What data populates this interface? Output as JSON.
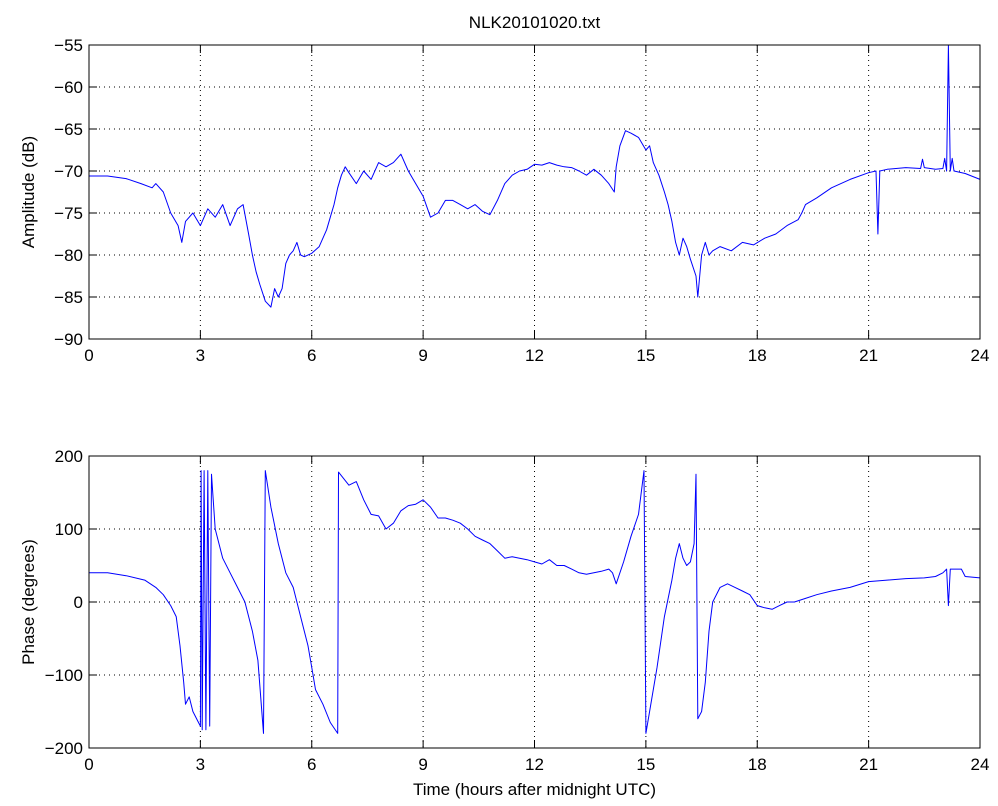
{
  "chart_data": [
    {
      "type": "line",
      "title": "NLK20101020.txt",
      "xlabel": "",
      "ylabel": "Amplitude (dB)",
      "xlim": [
        0,
        24
      ],
      "ylim": [
        -90,
        -55
      ],
      "xticks": [
        0,
        3,
        6,
        9,
        12,
        15,
        18,
        21,
        24
      ],
      "yticks": [
        -90,
        -85,
        -80,
        -75,
        -70,
        -65,
        -60,
        -55
      ],
      "grid": true,
      "line_color": "#0000ff",
      "series": [
        {
          "points": [
            [
              0,
              -70.6
            ],
            [
              0.5,
              -70.6
            ],
            [
              1.0,
              -70.9
            ],
            [
              1.4,
              -71.5
            ],
            [
              1.7,
              -72.0
            ],
            [
              1.8,
              -71.5
            ],
            [
              2.0,
              -72.5
            ],
            [
              2.2,
              -75.0
            ],
            [
              2.4,
              -76.5
            ],
            [
              2.5,
              -78.5
            ],
            [
              2.6,
              -76.0
            ],
            [
              2.8,
              -75.0
            ],
            [
              3.0,
              -76.5
            ],
            [
              3.2,
              -74.5
            ],
            [
              3.4,
              -75.5
            ],
            [
              3.6,
              -74.0
            ],
            [
              3.8,
              -76.5
            ],
            [
              4.0,
              -74.5
            ],
            [
              4.15,
              -74.0
            ],
            [
              4.3,
              -77.5
            ],
            [
              4.4,
              -80.0
            ],
            [
              4.5,
              -82.0
            ],
            [
              4.6,
              -83.5
            ],
            [
              4.75,
              -85.5
            ],
            [
              4.9,
              -86.2
            ],
            [
              5.0,
              -84.0
            ],
            [
              5.1,
              -85.0
            ],
            [
              5.2,
              -84.0
            ],
            [
              5.3,
              -81.0
            ],
            [
              5.4,
              -80.0
            ],
            [
              5.5,
              -79.5
            ],
            [
              5.6,
              -78.5
            ],
            [
              5.7,
              -80.0
            ],
            [
              5.8,
              -80.2
            ],
            [
              6.0,
              -79.8
            ],
            [
              6.2,
              -79.0
            ],
            [
              6.4,
              -77.0
            ],
            [
              6.5,
              -75.5
            ],
            [
              6.6,
              -74.0
            ],
            [
              6.7,
              -72.0
            ],
            [
              6.8,
              -70.5
            ],
            [
              6.9,
              -69.5
            ],
            [
              7.0,
              -70.2
            ],
            [
              7.2,
              -71.5
            ],
            [
              7.4,
              -70.0
            ],
            [
              7.6,
              -71.0
            ],
            [
              7.8,
              -69.0
            ],
            [
              8.0,
              -69.5
            ],
            [
              8.2,
              -69.0
            ],
            [
              8.4,
              -68.0
            ],
            [
              8.6,
              -70.0
            ],
            [
              8.8,
              -71.5
            ],
            [
              9.0,
              -73.0
            ],
            [
              9.2,
              -75.5
            ],
            [
              9.4,
              -75.0
            ],
            [
              9.6,
              -73.5
            ],
            [
              9.8,
              -73.5
            ],
            [
              10.0,
              -74.0
            ],
            [
              10.2,
              -74.5
            ],
            [
              10.4,
              -74.0
            ],
            [
              10.6,
              -74.8
            ],
            [
              10.8,
              -75.2
            ],
            [
              11.0,
              -73.5
            ],
            [
              11.2,
              -71.5
            ],
            [
              11.4,
              -70.5
            ],
            [
              11.6,
              -70.0
            ],
            [
              11.8,
              -69.8
            ],
            [
              12.0,
              -69.2
            ],
            [
              12.2,
              -69.3
            ],
            [
              12.4,
              -69.0
            ],
            [
              12.6,
              -69.3
            ],
            [
              12.8,
              -69.5
            ],
            [
              13.0,
              -69.6
            ],
            [
              13.2,
              -70.0
            ],
            [
              13.4,
              -70.5
            ],
            [
              13.6,
              -69.8
            ],
            [
              13.8,
              -70.5
            ],
            [
              14.0,
              -71.5
            ],
            [
              14.15,
              -72.5
            ],
            [
              14.2,
              -69.5
            ],
            [
              14.3,
              -67.0
            ],
            [
              14.45,
              -65.2
            ],
            [
              14.6,
              -65.5
            ],
            [
              14.8,
              -66.0
            ],
            [
              15.0,
              -67.5
            ],
            [
              15.1,
              -67.0
            ],
            [
              15.2,
              -69.0
            ],
            [
              15.35,
              -70.5
            ],
            [
              15.5,
              -72.5
            ],
            [
              15.6,
              -74.0
            ],
            [
              15.7,
              -76.0
            ],
            [
              15.8,
              -78.5
            ],
            [
              15.9,
              -80.0
            ],
            [
              16.0,
              -78.0
            ],
            [
              16.1,
              -79.0
            ],
            [
              16.2,
              -80.5
            ],
            [
              16.35,
              -82.5
            ],
            [
              16.4,
              -85.0
            ],
            [
              16.5,
              -80.0
            ],
            [
              16.6,
              -78.5
            ],
            [
              16.7,
              -80.0
            ],
            [
              16.8,
              -79.5
            ],
            [
              17.0,
              -79.0
            ],
            [
              17.3,
              -79.5
            ],
            [
              17.6,
              -78.5
            ],
            [
              17.9,
              -78.8
            ],
            [
              18.2,
              -78.0
            ],
            [
              18.5,
              -77.5
            ],
            [
              18.8,
              -76.5
            ],
            [
              19.1,
              -75.8
            ],
            [
              19.2,
              -75.0
            ],
            [
              19.3,
              -74.0
            ],
            [
              19.6,
              -73.2
            ],
            [
              20.0,
              -72.0
            ],
            [
              20.5,
              -71.0
            ],
            [
              21.0,
              -70.2
            ],
            [
              21.2,
              -70.0
            ],
            [
              21.25,
              -77.5
            ],
            [
              21.3,
              -70.0
            ],
            [
              21.5,
              -69.8
            ],
            [
              22.0,
              -69.6
            ],
            [
              22.4,
              -69.7
            ],
            [
              22.45,
              -68.6
            ],
            [
              22.5,
              -69.6
            ],
            [
              22.8,
              -69.8
            ],
            [
              23.0,
              -69.7
            ],
            [
              23.05,
              -68.5
            ],
            [
              23.1,
              -70.0
            ],
            [
              23.15,
              -55.0
            ],
            [
              23.2,
              -70.0
            ],
            [
              23.25,
              -68.5
            ],
            [
              23.3,
              -70.0
            ],
            [
              23.6,
              -70.3
            ],
            [
              24,
              -71.0
            ]
          ]
        }
      ]
    },
    {
      "type": "line",
      "title": "",
      "xlabel": "Time (hours after midnight UTC)",
      "ylabel": "Phase (degrees)",
      "xlim": [
        0,
        24
      ],
      "ylim": [
        -200,
        200
      ],
      "xticks": [
        0,
        3,
        6,
        9,
        12,
        15,
        18,
        21,
        24
      ],
      "yticks": [
        -200,
        -100,
        0,
        100,
        200
      ],
      "grid": true,
      "line_color": "#0000ff",
      "series": [
        {
          "points": [
            [
              0,
              40
            ],
            [
              0.5,
              40
            ],
            [
              1.0,
              36
            ],
            [
              1.5,
              30
            ],
            [
              1.8,
              20
            ],
            [
              2.0,
              10
            ],
            [
              2.2,
              -5
            ],
            [
              2.35,
              -20
            ],
            [
              2.45,
              -60
            ],
            [
              2.55,
              -110
            ],
            [
              2.6,
              -140
            ],
            [
              2.7,
              -130
            ],
            [
              2.8,
              -150
            ],
            [
              2.95,
              -165
            ],
            [
              3.0,
              -170
            ],
            [
              3.02,
              180
            ],
            [
              3.05,
              -175
            ],
            [
              3.1,
              180
            ],
            [
              3.15,
              -175
            ],
            [
              3.2,
              180
            ],
            [
              3.25,
              -170
            ],
            [
              3.3,
              175
            ],
            [
              3.4,
              100
            ],
            [
              3.6,
              60
            ],
            [
              3.8,
              40
            ],
            [
              4.0,
              20
            ],
            [
              4.2,
              0
            ],
            [
              4.4,
              -40
            ],
            [
              4.55,
              -80
            ],
            [
              4.7,
              -180
            ],
            [
              4.75,
              180
            ],
            [
              4.9,
              130
            ],
            [
              5.1,
              80
            ],
            [
              5.3,
              40
            ],
            [
              5.5,
              20
            ],
            [
              5.7,
              -20
            ],
            [
              5.9,
              -60
            ],
            [
              6.0,
              -90
            ],
            [
              6.1,
              -120
            ],
            [
              6.3,
              -140
            ],
            [
              6.5,
              -165
            ],
            [
              6.7,
              -180
            ],
            [
              6.72,
              178
            ],
            [
              7.0,
              160
            ],
            [
              7.2,
              165
            ],
            [
              7.4,
              140
            ],
            [
              7.6,
              120
            ],
            [
              7.8,
              118
            ],
            [
              8.0,
              100
            ],
            [
              8.2,
              108
            ],
            [
              8.4,
              125
            ],
            [
              8.6,
              132
            ],
            [
              8.8,
              134
            ],
            [
              9.0,
              140
            ],
            [
              9.2,
              130
            ],
            [
              9.4,
              115
            ],
            [
              9.6,
              115
            ],
            [
              9.8,
              112
            ],
            [
              10.0,
              108
            ],
            [
              10.2,
              100
            ],
            [
              10.4,
              90
            ],
            [
              10.6,
              85
            ],
            [
              10.8,
              80
            ],
            [
              11.0,
              70
            ],
            [
              11.2,
              60
            ],
            [
              11.4,
              62
            ],
            [
              11.6,
              60
            ],
            [
              11.8,
              58
            ],
            [
              12.0,
              55
            ],
            [
              12.2,
              52
            ],
            [
              12.4,
              58
            ],
            [
              12.6,
              50
            ],
            [
              12.8,
              50
            ],
            [
              13.0,
              45
            ],
            [
              13.2,
              40
            ],
            [
              13.4,
              38
            ],
            [
              13.6,
              40
            ],
            [
              13.8,
              42
            ],
            [
              14.0,
              45
            ],
            [
              14.1,
              40
            ],
            [
              14.2,
              25
            ],
            [
              14.4,
              55
            ],
            [
              14.6,
              90
            ],
            [
              14.8,
              120
            ],
            [
              14.95,
              180
            ],
            [
              15.0,
              -180
            ],
            [
              15.1,
              -150
            ],
            [
              15.3,
              -90
            ],
            [
              15.5,
              -20
            ],
            [
              15.7,
              30
            ],
            [
              15.8,
              60
            ],
            [
              15.9,
              80
            ],
            [
              16.0,
              60
            ],
            [
              16.1,
              50
            ],
            [
              16.2,
              55
            ],
            [
              16.3,
              80
            ],
            [
              16.35,
              175
            ],
            [
              16.4,
              -160
            ],
            [
              16.5,
              -150
            ],
            [
              16.6,
              -110
            ],
            [
              16.7,
              -40
            ],
            [
              16.8,
              0
            ],
            [
              17.0,
              20
            ],
            [
              17.2,
              25
            ],
            [
              17.4,
              20
            ],
            [
              17.6,
              15
            ],
            [
              17.8,
              10
            ],
            [
              18.0,
              -5
            ],
            [
              18.2,
              -8
            ],
            [
              18.4,
              -10
            ],
            [
              18.6,
              -5
            ],
            [
              18.8,
              0
            ],
            [
              19.0,
              0
            ],
            [
              19.3,
              5
            ],
            [
              19.6,
              10
            ],
            [
              20.0,
              15
            ],
            [
              20.5,
              20
            ],
            [
              21.0,
              28
            ],
            [
              21.5,
              30
            ],
            [
              22.0,
              32
            ],
            [
              22.5,
              33
            ],
            [
              22.8,
              35
            ],
            [
              23.0,
              40
            ],
            [
              23.1,
              45
            ],
            [
              23.15,
              -5
            ],
            [
              23.2,
              45
            ],
            [
              23.5,
              45
            ],
            [
              23.6,
              35
            ],
            [
              24,
              33
            ]
          ]
        }
      ]
    }
  ]
}
